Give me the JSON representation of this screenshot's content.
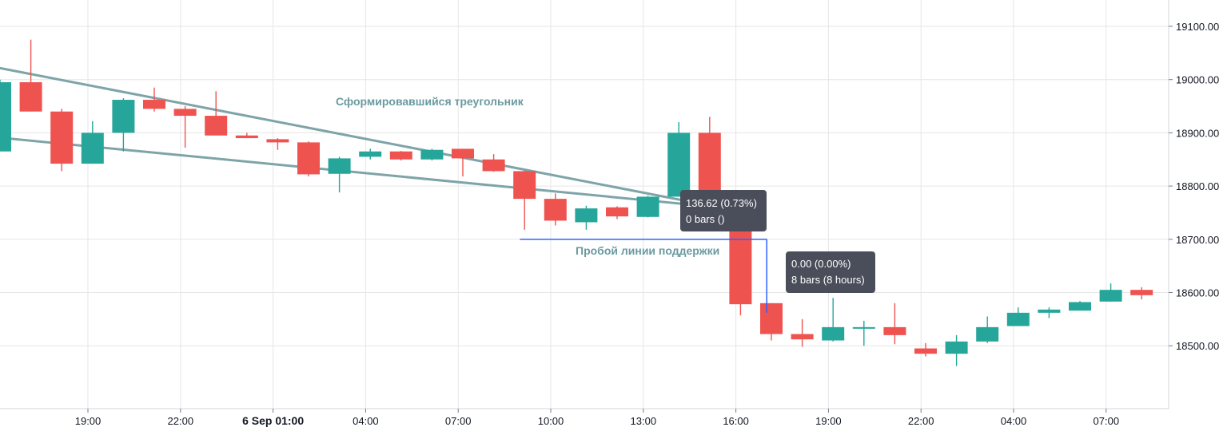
{
  "chart_data": {
    "type": "candlestick",
    "title": "",
    "y_axis": {
      "side": "right",
      "ticks": [
        "19100.00",
        "19000.00",
        "18900.00",
        "18800.00",
        "18700.00",
        "18600.00",
        "18500.00"
      ],
      "ylim": [
        18400,
        19150
      ]
    },
    "x_axis": {
      "ticks": [
        {
          "label": "19:00",
          "index": 2.85,
          "bold": false
        },
        {
          "label": "22:00",
          "index": 5.85,
          "bold": false
        },
        {
          "label": "6 Sep 01:00",
          "index": 8.85,
          "bold": true
        },
        {
          "label": "04:00",
          "index": 11.85,
          "bold": false
        },
        {
          "label": "07:00",
          "index": 14.85,
          "bold": false
        },
        {
          "label": "10:00",
          "index": 17.85,
          "bold": false
        },
        {
          "label": "13:00",
          "index": 20.85,
          "bold": false
        },
        {
          "label": "16:00",
          "index": 23.85,
          "bold": false
        },
        {
          "label": "19:00",
          "index": 26.85,
          "bold": false
        },
        {
          "label": "22:00",
          "index": 29.85,
          "bold": false
        },
        {
          "label": "04:00",
          "index": 32.85,
          "bold": false
        },
        {
          "label": "07:00",
          "index": 35.85,
          "bold": false
        }
      ]
    },
    "candles": [
      {
        "o": 18865,
        "h": 19000,
        "l": 18865,
        "c": 18995
      },
      {
        "o": 18995,
        "h": 19075,
        "l": 18940,
        "c": 18940
      },
      {
        "o": 18940,
        "h": 18945,
        "l": 18828,
        "c": 18842
      },
      {
        "o": 18842,
        "h": 18922,
        "l": 18842,
        "c": 18900
      },
      {
        "o": 18900,
        "h": 18965,
        "l": 18865,
        "c": 18962
      },
      {
        "o": 18962,
        "h": 18985,
        "l": 18940,
        "c": 18945
      },
      {
        "o": 18945,
        "h": 18950,
        "l": 18872,
        "c": 18932
      },
      {
        "o": 18932,
        "h": 18978,
        "l": 18895,
        "c": 18895
      },
      {
        "o": 18895,
        "h": 18900,
        "l": 18890,
        "c": 18890
      },
      {
        "o": 18888,
        "h": 18890,
        "l": 18868,
        "c": 18882
      },
      {
        "o": 18882,
        "h": 18884,
        "l": 18818,
        "c": 18822
      },
      {
        "o": 18823,
        "h": 18855,
        "l": 18788,
        "c": 18852
      },
      {
        "o": 18855,
        "h": 18870,
        "l": 18850,
        "c": 18865
      },
      {
        "o": 18865,
        "h": 18866,
        "l": 18848,
        "c": 18850
      },
      {
        "o": 18850,
        "h": 18870,
        "l": 18848,
        "c": 18868
      },
      {
        "o": 18870,
        "h": 18870,
        "l": 18818,
        "c": 18852
      },
      {
        "o": 18850,
        "h": 18860,
        "l": 18827,
        "c": 18828
      },
      {
        "o": 18828,
        "h": 18829,
        "l": 18718,
        "c": 18776
      },
      {
        "o": 18776,
        "h": 18786,
        "l": 18726,
        "c": 18735
      },
      {
        "o": 18732,
        "h": 18763,
        "l": 18718,
        "c": 18758
      },
      {
        "o": 18760,
        "h": 18762,
        "l": 18738,
        "c": 18743
      },
      {
        "o": 18742,
        "h": 18782,
        "l": 18741,
        "c": 18780
      },
      {
        "o": 18780,
        "h": 18920,
        "l": 18780,
        "c": 18900
      },
      {
        "o": 18900,
        "h": 18930,
        "l": 18758,
        "c": 18760
      },
      {
        "o": 18760,
        "h": 18760,
        "l": 18557,
        "c": 18578
      },
      {
        "o": 18580,
        "h": 18580,
        "l": 18510,
        "c": 18522
      },
      {
        "o": 18522,
        "h": 18550,
        "l": 18498,
        "c": 18512
      },
      {
        "o": 18510,
        "h": 18590,
        "l": 18508,
        "c": 18535
      },
      {
        "o": 18535,
        "h": 18547,
        "l": 18500,
        "c": 18535
      },
      {
        "o": 18535,
        "h": 18580,
        "l": 18503,
        "c": 18520
      },
      {
        "o": 18495,
        "h": 18505,
        "l": 18480,
        "c": 18485
      },
      {
        "o": 18485,
        "h": 18520,
        "l": 18462,
        "c": 18508
      },
      {
        "o": 18508,
        "h": 18555,
        "l": 18505,
        "c": 18535
      },
      {
        "o": 18537,
        "h": 18572,
        "l": 18537,
        "c": 18562
      },
      {
        "o": 18562,
        "h": 18572,
        "l": 18552,
        "c": 18568
      },
      {
        "o": 18566,
        "h": 18584,
        "l": 18566,
        "c": 18582
      },
      {
        "o": 18583,
        "h": 18617,
        "l": 18583,
        "c": 18605
      },
      {
        "o": 18605,
        "h": 18610,
        "l": 18587,
        "c": 18595
      }
    ],
    "colors": {
      "up": "#26a69a",
      "down": "#ef5350",
      "trendline": "#7ea4a8",
      "measure_line": "#2962ff",
      "tooltip_bg": "#4a4e5a",
      "grid": "#e6e6e6",
      "annotation_text": "#6a9aa0"
    },
    "annotations": {
      "triangle_label": "Сформировавшийся треугольник",
      "support_break_label": "Пробой линии поддержки"
    },
    "trendlines": [
      {
        "from": {
          "i": -0.75,
          "p": 19030
        },
        "to": {
          "i": 24.2,
          "p": 18750
        }
      },
      {
        "from": {
          "i": -0.75,
          "p": 18895
        },
        "to": {
          "i": 23.3,
          "p": 18760
        }
      }
    ],
    "measure": {
      "horizontal": {
        "from_i": 16.85,
        "to_i": 24.85,
        "price": 18700
      },
      "vertical": {
        "i": 24.85,
        "from_p": 18700,
        "to_p": 18562
      }
    },
    "tooltips": [
      {
        "line1": "136.62 (0.73%)",
        "line2": "0 bars ()"
      },
      {
        "line1": "0.00 (0.00%)",
        "line2": "8 bars (8 hours)"
      }
    ]
  }
}
